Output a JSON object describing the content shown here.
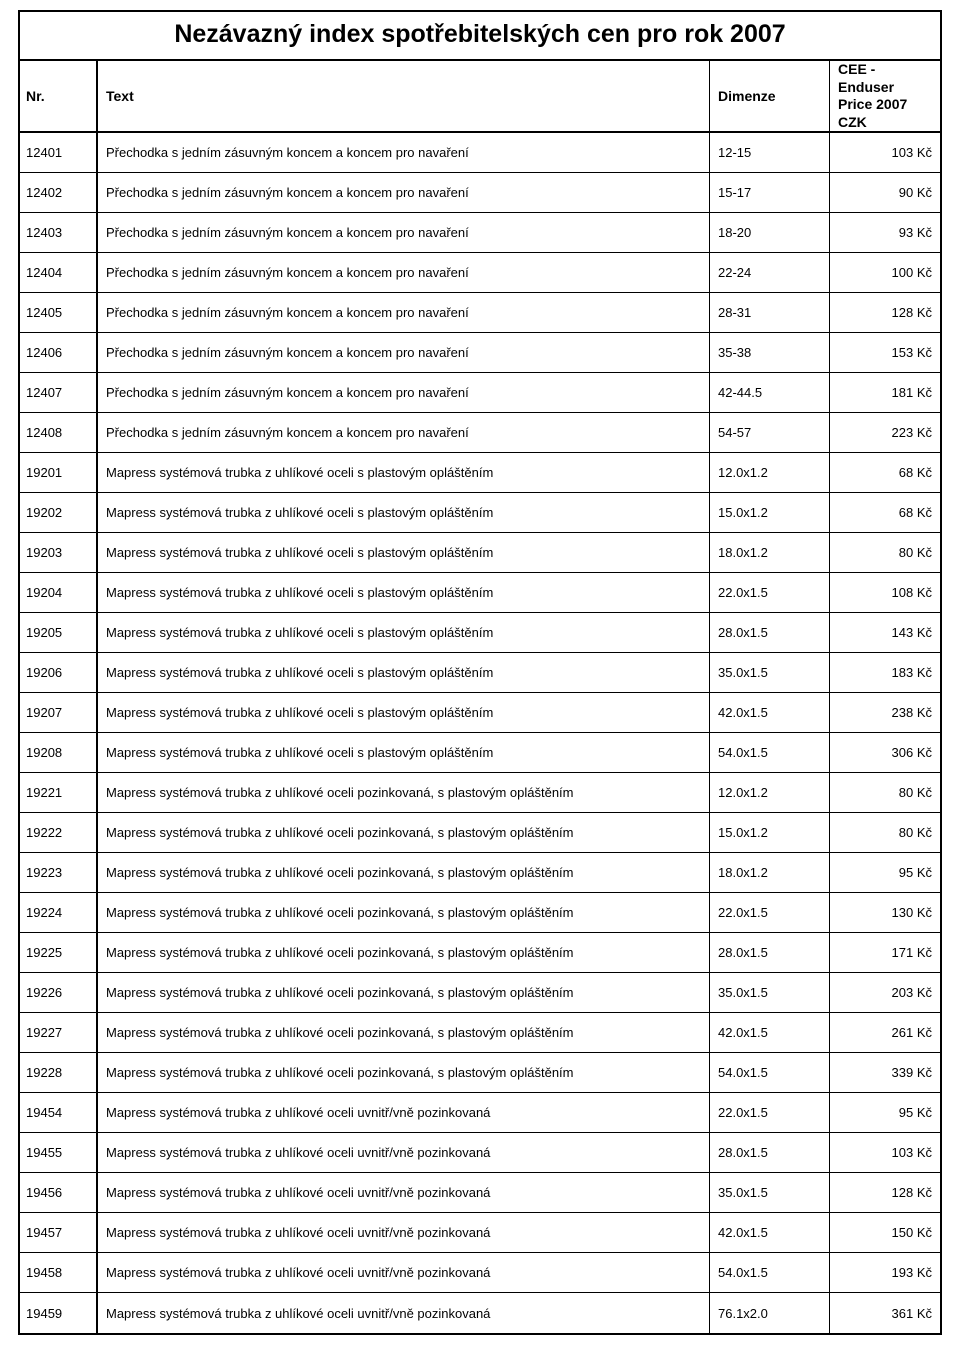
{
  "title": "Nezávazný index spotřebitelských cen pro rok 2007",
  "columns": {
    "nr": "Nr.",
    "text": "Text",
    "dim": "Dimenze",
    "price": "CEE - Enduser Price 2007 CZK"
  },
  "rows": [
    {
      "nr": "12401",
      "text": "Přechodka s jedním zásuvným koncem a koncem pro navaření",
      "dim": "12-15",
      "price": "103 Kč"
    },
    {
      "nr": "12402",
      "text": "Přechodka s jedním zásuvným koncem a koncem pro navaření",
      "dim": "15-17",
      "price": "90 Kč"
    },
    {
      "nr": "12403",
      "text": "Přechodka s jedním zásuvným koncem a koncem pro navaření",
      "dim": "18-20",
      "price": "93 Kč"
    },
    {
      "nr": "12404",
      "text": "Přechodka s jedním zásuvným koncem a koncem pro navaření",
      "dim": "22-24",
      "price": "100 Kč"
    },
    {
      "nr": "12405",
      "text": "Přechodka s jedním zásuvným koncem a koncem pro navaření",
      "dim": "28-31",
      "price": "128 Kč"
    },
    {
      "nr": "12406",
      "text": "Přechodka s jedním zásuvným koncem a koncem pro navaření",
      "dim": "35-38",
      "price": "153 Kč"
    },
    {
      "nr": "12407",
      "text": "Přechodka s jedním zásuvným koncem a koncem pro navaření",
      "dim": "42-44.5",
      "price": "181 Kč"
    },
    {
      "nr": "12408",
      "text": "Přechodka s jedním zásuvným koncem a koncem pro navaření",
      "dim": "54-57",
      "price": "223 Kč"
    },
    {
      "nr": "19201",
      "text": "Mapress systémová trubka z uhlíkové oceli s plastovým opláštěním",
      "dim": "12.0x1.2",
      "price": "68 Kč"
    },
    {
      "nr": "19202",
      "text": "Mapress systémová trubka z uhlíkové oceli s plastovým opláštěním",
      "dim": "15.0x1.2",
      "price": "68 Kč"
    },
    {
      "nr": "19203",
      "text": "Mapress systémová trubka z uhlíkové oceli s plastovým opláštěním",
      "dim": "18.0x1.2",
      "price": "80 Kč"
    },
    {
      "nr": "19204",
      "text": "Mapress systémová trubka z uhlíkové oceli s plastovým opláštěním",
      "dim": "22.0x1.5",
      "price": "108 Kč"
    },
    {
      "nr": "19205",
      "text": "Mapress systémová trubka z uhlíkové oceli s plastovým opláštěním",
      "dim": "28.0x1.5",
      "price": "143 Kč"
    },
    {
      "nr": "19206",
      "text": "Mapress systémová trubka z uhlíkové oceli s plastovým opláštěním",
      "dim": "35.0x1.5",
      "price": "183 Kč"
    },
    {
      "nr": "19207",
      "text": "Mapress systémová trubka z uhlíkové oceli s plastovým opláštěním",
      "dim": "42.0x1.5",
      "price": "238 Kč"
    },
    {
      "nr": "19208",
      "text": "Mapress systémová trubka z uhlíkové oceli s plastovým opláštěním",
      "dim": "54.0x1.5",
      "price": "306 Kč"
    },
    {
      "nr": "19221",
      "text": "Mapress systémová trubka z uhlíkové oceli pozinkovaná, s plastovým opláštěním",
      "dim": "12.0x1.2",
      "price": "80 Kč"
    },
    {
      "nr": "19222",
      "text": "Mapress systémová trubka z uhlíkové oceli pozinkovaná, s plastovým opláštěním",
      "dim": "15.0x1.2",
      "price": "80 Kč"
    },
    {
      "nr": "19223",
      "text": "Mapress systémová trubka z uhlíkové oceli pozinkovaná, s plastovým opláštěním",
      "dim": "18.0x1.2",
      "price": "95 Kč"
    },
    {
      "nr": "19224",
      "text": "Mapress systémová trubka z uhlíkové oceli pozinkovaná, s plastovým opláštěním",
      "dim": "22.0x1.5",
      "price": "130 Kč"
    },
    {
      "nr": "19225",
      "text": "Mapress systémová trubka z uhlíkové oceli pozinkovaná, s plastovým opláštěním",
      "dim": "28.0x1.5",
      "price": "171 Kč"
    },
    {
      "nr": "19226",
      "text": "Mapress systémová trubka z uhlíkové oceli pozinkovaná, s plastovým opláštěním",
      "dim": "35.0x1.5",
      "price": "203 Kč"
    },
    {
      "nr": "19227",
      "text": "Mapress systémová trubka z uhlíkové oceli pozinkovaná, s plastovým opláštěním",
      "dim": "42.0x1.5",
      "price": "261 Kč"
    },
    {
      "nr": "19228",
      "text": "Mapress systémová trubka z uhlíkové oceli pozinkovaná, s plastovým opláštěním",
      "dim": "54.0x1.5",
      "price": "339 Kč"
    },
    {
      "nr": "19454",
      "text": "Mapress systémová trubka z uhlíkové oceli uvnitř/vně pozinkovaná",
      "dim": "22.0x1.5",
      "price": "95 Kč"
    },
    {
      "nr": "19455",
      "text": "Mapress systémová trubka z uhlíkové oceli uvnitř/vně pozinkovaná",
      "dim": "28.0x1.5",
      "price": "103 Kč"
    },
    {
      "nr": "19456",
      "text": "Mapress systémová trubka z uhlíkové oceli uvnitř/vně pozinkovaná",
      "dim": "35.0x1.5",
      "price": "128 Kč"
    },
    {
      "nr": "19457",
      "text": "Mapress systémová trubka z uhlíkové oceli uvnitř/vně pozinkovaná",
      "dim": "42.0x1.5",
      "price": "150 Kč"
    },
    {
      "nr": "19458",
      "text": "Mapress systémová trubka z uhlíkové oceli uvnitř/vně pozinkovaná",
      "dim": "54.0x1.5",
      "price": "193 Kč"
    },
    {
      "nr": "19459",
      "text": "Mapress systémová trubka z uhlíkové oceli uvnitř/vně pozinkovaná",
      "dim": "76.1x2.0",
      "price": "361 Kč"
    }
  ]
}
